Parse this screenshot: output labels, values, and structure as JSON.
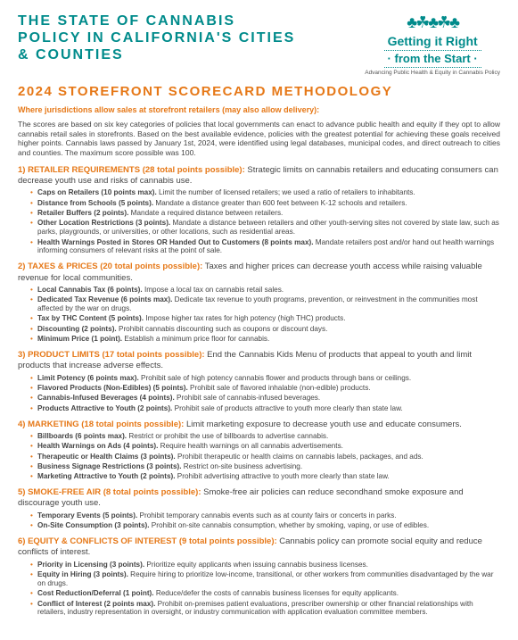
{
  "colors": {
    "teal": "#008b8b",
    "orange": "#e67817",
    "body": "#444444",
    "bg": "#ffffff"
  },
  "header": {
    "title": "THE STATE OF CANNABIS POLICY IN CALIFORNIA'S CITIES & COUNTIES",
    "logo_line1": "Getting it Right",
    "logo_line2": "· from the Start ·",
    "logo_tag": "Advancing Public Health & Equity in Cannabis Policy"
  },
  "subtitle": "2024 STOREFRONT SCORECARD  METHODOLOGY",
  "tagline": "Where jurisdictions allow sales at storefront retailers (may also allow delivery):",
  "intro": "The scores are based on six key categories of policies that local governments can enact to advance public health and equity if they opt to allow cannabis retail sales in storefronts. Based on the best available evidence, policies with the greatest potential for achieving these goals received higher points. Cannabis laws passed by January 1st, 2024, were identified using legal databases, municipal codes, and direct outreach to cities and counties. The maximum score possible was 100.",
  "categories": [
    {
      "head": "1) RETAILER REQUIREMENTS (28 total points possible):",
      "desc": " Strategic limits on cannabis retailers and  educating consumers can decrease youth use and risks of cannabis use.",
      "items": [
        {
          "b": "Caps on Retailers (10 points max).",
          "t": " Limit the number of licensed retailers; we used a ratio of retailers to inhabitants."
        },
        {
          "b": "Distance from Schools (5 points).",
          "t": " Mandate a distance greater than 600 feet between K-12 schools and retailers."
        },
        {
          "b": "Retailer Buffers (2 points).",
          "t": " Mandate a required distance between retailers."
        },
        {
          "b": "Other Location Restrictions (3 points).",
          "t": " Mandate a distance between retailers and other youth-serving sites not covered by state law, such as parks, playgrounds, or universities, or other locations, such as residential areas."
        },
        {
          "b": "Health Warnings Posted in Stores OR Handed Out to Customers (8 points max).",
          "t": " Mandate retailers post and/or hand out health warnings informing consumers of relevant risks at the point of sale."
        }
      ]
    },
    {
      "head": "2) TAXES & PRICES (20 total points possible):",
      "desc": " Taxes and higher prices can decrease youth access while raising valuable revenue for local communities.",
      "items": [
        {
          "b": "Local Cannabis Tax (6 points).",
          "t": " Impose a local tax on cannabis retail sales."
        },
        {
          "b": "Dedicated Tax Revenue (6 points max).",
          "t": " Dedicate tax revenue to youth programs, prevention, or reinvestment in the communities most affected by the war on drugs."
        },
        {
          "b": "Tax by THC Content (5 points).",
          "t": " Impose higher tax rates for high potency (high THC) products."
        },
        {
          "b": "Discounting (2 points).",
          "t": " Prohibit cannabis discounting such as coupons or discount days."
        },
        {
          "b": "Minimum Price (1 point).",
          "t": " Establish a minimum price floor for cannabis."
        }
      ]
    },
    {
      "head": "3) PRODUCT LIMITS (17 total points possible):",
      "desc": " End the Cannabis Kids Menu of products that appeal to youth and limit products that increase adverse effects.",
      "items": [
        {
          "b": "Limit Potency (6 points max).",
          "t": " Prohibit sale of high potency cannabis flower and products through bans or ceilings."
        },
        {
          "b": "Flavored Products (Non-Edibles) (5 points).",
          "t": " Prohibit sale of flavored inhalable (non-edible) products."
        },
        {
          "b": "Cannabis-Infused Beverages (4 points).",
          "t": " Prohibit sale of cannabis-infused beverages."
        },
        {
          "b": "Products Attractive to Youth (2 points).",
          "t": " Prohibit sale of products attractive to youth more clearly than state law."
        }
      ]
    },
    {
      "head": "4) MARKETING (18 total points possible):",
      "desc": " Limit marketing exposure to decrease youth use and educate consumers.",
      "items": [
        {
          "b": "Billboards (6 points max).",
          "t": " Restrict or prohibit the use of billboards to advertise cannabis."
        },
        {
          "b": "Health Warnings on Ads (4 points).",
          "t": " Require health warnings on all cannabis advertisements."
        },
        {
          "b": "Therapeutic or Health Claims (3 points).",
          "t": " Prohibit therapeutic or health claims on cannabis labels, packages, and ads."
        },
        {
          "b": "Business Signage Restrictions (3 points).",
          "t": " Restrict on-site business advertising."
        },
        {
          "b": "Marketing Attractive to Youth (2 points).",
          "t": " Prohibit advertising attractive to youth more clearly than state law."
        }
      ]
    },
    {
      "head": "5) SMOKE-FREE AIR (8 total points possible):",
      "desc": " Smoke-free air policies can reduce secondhand smoke exposure and discourage youth use.",
      "items": [
        {
          "b": "Temporary Events (5 points).",
          "t": " Prohibit temporary cannabis events such as at county fairs or concerts in parks."
        },
        {
          "b": "On-Site Consumption (3 points).",
          "t": " Prohibit on-site cannabis consumption, whether by smoking, vaping, or use of edibles."
        }
      ]
    },
    {
      "head": "6) EQUITY & CONFLICTS OF INTEREST (9 total points possible):",
      "desc": " Cannabis policy can promote social equity and reduce conflicts of interest.",
      "items": [
        {
          "b": "Priority in Licensing (3 points).",
          "t": " Prioritize equity applicants when issuing cannabis business licenses."
        },
        {
          "b": "Equity in Hiring (3 points).",
          "t": " Require hiring to prioritize low-income, transitional, or other workers from communities disadvantaged by the war on drugs."
        },
        {
          "b": "Cost Reduction/Deferral (1 point).",
          "t": " Reduce/defer the costs of cannabis business licenses for equity applicants."
        },
        {
          "b": "Conflict of Interest (2 points max).",
          "t": " Prohibit on-premises patient evaluations, prescriber ownership or other financial relationships with retailers, industry representation in oversight, or industry communication with application evaluation committee members."
        }
      ]
    }
  ]
}
